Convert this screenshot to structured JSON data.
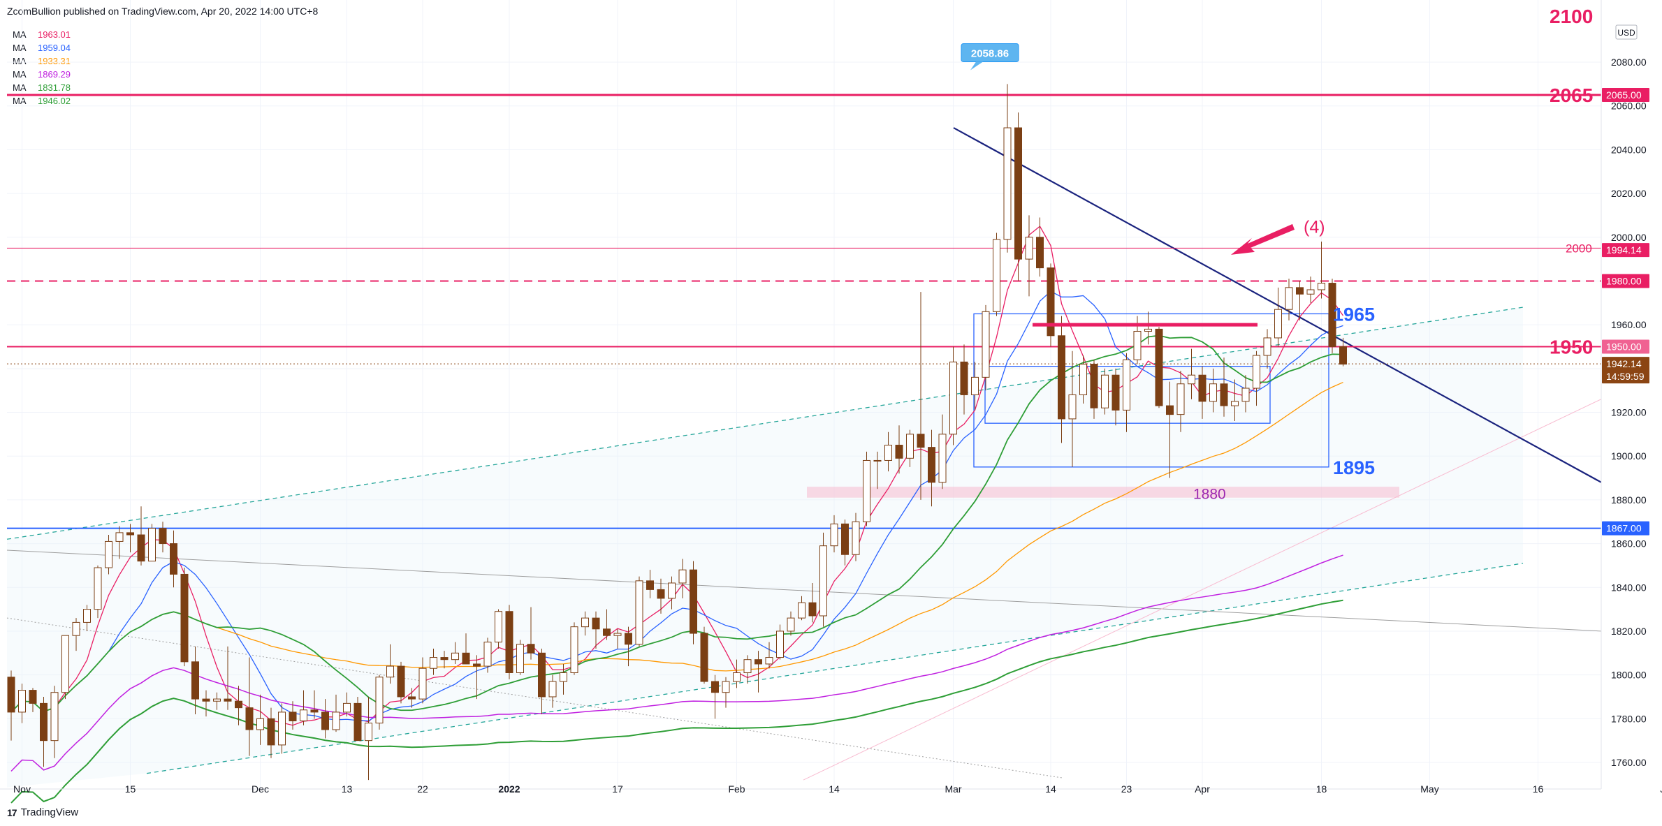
{
  "header": {
    "publisher": "ZcomBullion published on TradingView.com, Apr 20, 2022 14:00 UTC+8"
  },
  "footer": {
    "brand": "TradingView",
    "logo": "17"
  },
  "ma_legend": [
    {
      "label": "MA",
      "value": "1963.01",
      "color": "#e91e63"
    },
    {
      "label": "MA",
      "value": "1959.04",
      "color": "#2962ff"
    },
    {
      "label": "MA",
      "value": "1933.31",
      "color": "#ff9800"
    },
    {
      "label": "MA",
      "value": "1869.29",
      "color": "#c020e0"
    },
    {
      "label": "MA",
      "value": "1831.78",
      "color": "#2e9e36"
    },
    {
      "label": "MA",
      "value": "1946.02",
      "color": "#2e9e36"
    }
  ],
  "chart_data": {
    "type": "candlestick",
    "currency": "USD",
    "ylim": [
      1750,
      2105
    ],
    "y_ticks": [
      "2080.00",
      "2060.00",
      "2040.00",
      "2020.00",
      "2000.00",
      "1980.00",
      "1960.00",
      "1940.00",
      "1920.00",
      "1900.00",
      "1880.00",
      "1860.00",
      "1840.00",
      "1820.00",
      "1800.00",
      "1780.00",
      "1760.00"
    ],
    "x_ticks": [
      {
        "date": "2021-11-01",
        "label": "Nov"
      },
      {
        "date": "2021-11-15",
        "label": "15"
      },
      {
        "date": "2021-12-01",
        "label": "Dec"
      },
      {
        "date": "2021-12-13",
        "label": "13"
      },
      {
        "date": "2021-12-22",
        "label": "22"
      },
      {
        "date": "2022-01-03",
        "label": "2022"
      },
      {
        "date": "2022-01-17",
        "label": "17"
      },
      {
        "date": "2022-02-01",
        "label": "Feb"
      },
      {
        "date": "2022-02-14",
        "label": "14"
      },
      {
        "date": "2022-03-01",
        "label": "Mar"
      },
      {
        "date": "2022-03-14",
        "label": "14"
      },
      {
        "date": "2022-03-23",
        "label": "23"
      },
      {
        "date": "2022-04-01",
        "label": "Apr"
      },
      {
        "date": "2022-04-18",
        "label": "18"
      },
      {
        "date": "2022-05-02",
        "label": "May"
      },
      {
        "date": "2022-05-16",
        "label": "16"
      },
      {
        "date": "2022-06-01",
        "label": "Jun"
      }
    ],
    "price_tags": [
      {
        "value": "2065.00",
        "price": 2065,
        "color": "#e91e63"
      },
      {
        "value": "1994.14",
        "price": 1994.14,
        "color": "#e91e63"
      },
      {
        "value": "1980.00",
        "price": 1980,
        "color": "#e91e63"
      },
      {
        "value": "1950.00",
        "price": 1950,
        "color": "#f06292"
      },
      {
        "value": "1942.14",
        "price": 1942.14,
        "color": "#8b4513",
        "sub": "14:59:59"
      },
      {
        "value": "1867.00",
        "price": 1867,
        "color": "#2962ff"
      }
    ],
    "horizontal_levels": [
      {
        "price": 2065,
        "style": "solid",
        "width": 3,
        "color": "#e91e63"
      },
      {
        "price": 1995,
        "style": "solid",
        "width": 1,
        "color": "#e91e63"
      },
      {
        "price": 1980,
        "style": "dashed",
        "width": 2,
        "color": "#e91e63"
      },
      {
        "price": 1950,
        "style": "solid",
        "width": 2,
        "color": "#e91e63"
      },
      {
        "price": 1942.14,
        "style": "dotted",
        "width": 1,
        "color": "#8b4513"
      },
      {
        "price": 1867,
        "style": "solid",
        "width": 2,
        "color": "#2962ff"
      }
    ],
    "annotations": [
      {
        "text": "2065",
        "color": "#e91e63"
      },
      {
        "text": "2000",
        "color": "#e91e63"
      },
      {
        "text": "1950",
        "color": "#e91e63"
      },
      {
        "text": "1965",
        "color": "#2962ff"
      },
      {
        "text": "1895",
        "color": "#2962ff"
      },
      {
        "text": "1880",
        "color": "#9c27b0"
      },
      {
        "text": "(4)",
        "color": "#e91e63"
      },
      {
        "text": "2058.86",
        "color": "#ffffff"
      }
    ],
    "partial_top_label": "2100",
    "ohlc": [
      [
        "2021-10-29",
        1799,
        1802,
        1770,
        1783
      ],
      [
        "2021-11-01",
        1783,
        1796,
        1778,
        1793
      ],
      [
        "2021-11-02",
        1793,
        1794,
        1783,
        1787
      ],
      [
        "2021-11-03",
        1787,
        1790,
        1758,
        1770
      ],
      [
        "2021-11-04",
        1770,
        1795,
        1762,
        1792
      ],
      [
        "2021-11-05",
        1792,
        1818,
        1789,
        1818
      ],
      [
        "2021-11-08",
        1818,
        1826,
        1811,
        1824
      ],
      [
        "2021-11-09",
        1824,
        1832,
        1820,
        1830
      ],
      [
        "2021-11-10",
        1830,
        1850,
        1826,
        1849
      ],
      [
        "2021-11-11",
        1849,
        1864,
        1846,
        1861
      ],
      [
        "2021-11-12",
        1861,
        1868,
        1853,
        1865
      ],
      [
        "2021-11-15",
        1865,
        1869,
        1856,
        1864
      ],
      [
        "2021-11-16",
        1864,
        1877,
        1850,
        1852
      ],
      [
        "2021-11-17",
        1852,
        1869,
        1852,
        1867
      ],
      [
        "2021-11-18",
        1867,
        1870,
        1856,
        1860
      ],
      [
        "2021-11-19",
        1860,
        1866,
        1840,
        1846
      ],
      [
        "2021-11-22",
        1846,
        1849,
        1804,
        1806
      ],
      [
        "2021-11-23",
        1806,
        1813,
        1782,
        1789
      ],
      [
        "2021-11-24",
        1789,
        1793,
        1781,
        1788
      ],
      [
        "2021-11-25",
        1788,
        1792,
        1784,
        1789
      ],
      [
        "2021-11-26",
        1789,
        1813,
        1784,
        1788
      ],
      [
        "2021-11-29",
        1788,
        1795,
        1777,
        1785
      ],
      [
        "2021-11-30",
        1785,
        1808,
        1763,
        1775
      ],
      [
        "2021-12-01",
        1775,
        1791,
        1768,
        1780
      ],
      [
        "2021-12-02",
        1780,
        1785,
        1762,
        1768
      ],
      [
        "2021-12-03",
        1768,
        1787,
        1764,
        1783
      ],
      [
        "2021-12-06",
        1783,
        1788,
        1775,
        1779
      ],
      [
        "2021-12-07",
        1779,
        1793,
        1777,
        1784
      ],
      [
        "2021-12-08",
        1784,
        1793,
        1780,
        1783
      ],
      [
        "2021-12-09",
        1783,
        1789,
        1771,
        1775
      ],
      [
        "2021-12-10",
        1775,
        1791,
        1774,
        1783
      ],
      [
        "2021-12-13",
        1783,
        1792,
        1781,
        1787
      ],
      [
        "2021-12-14",
        1787,
        1790,
        1770,
        1770
      ],
      [
        "2021-12-15",
        1770,
        1790,
        1752,
        1778
      ],
      [
        "2021-12-16",
        1778,
        1800,
        1775,
        1799
      ],
      [
        "2021-12-17",
        1799,
        1814,
        1796,
        1804
      ],
      [
        "2021-12-20",
        1804,
        1806,
        1787,
        1790
      ],
      [
        "2021-12-21",
        1790,
        1794,
        1785,
        1789
      ],
      [
        "2021-12-22",
        1789,
        1808,
        1787,
        1803
      ],
      [
        "2021-12-23",
        1803,
        1812,
        1800,
        1808
      ],
      [
        "2021-12-24",
        1808,
        1811,
        1803,
        1807
      ],
      [
        "2021-12-27",
        1807,
        1815,
        1805,
        1810
      ],
      [
        "2021-12-28",
        1810,
        1819,
        1805,
        1805
      ],
      [
        "2021-12-29",
        1805,
        1809,
        1789,
        1804
      ],
      [
        "2021-12-30",
        1804,
        1817,
        1801,
        1815
      ],
      [
        "2021-12-31",
        1815,
        1830,
        1812,
        1829
      ],
      [
        "2022-01-03",
        1829,
        1832,
        1798,
        1801
      ],
      [
        "2022-01-04",
        1801,
        1816,
        1800,
        1814
      ],
      [
        "2022-01-05",
        1814,
        1831,
        1807,
        1810
      ],
      [
        "2022-01-06",
        1810,
        1812,
        1782,
        1790
      ],
      [
        "2022-01-07",
        1790,
        1800,
        1785,
        1797
      ],
      [
        "2022-01-10",
        1797,
        1805,
        1791,
        1801
      ],
      [
        "2022-01-11",
        1801,
        1824,
        1800,
        1822
      ],
      [
        "2022-01-12",
        1822,
        1829,
        1818,
        1826
      ],
      [
        "2022-01-13",
        1826,
        1829,
        1812,
        1821
      ],
      [
        "2022-01-14",
        1821,
        1830,
        1816,
        1818
      ],
      [
        "2022-01-17",
        1818,
        1821,
        1812,
        1819
      ],
      [
        "2022-01-18",
        1819,
        1822,
        1804,
        1814
      ],
      [
        "2022-01-19",
        1814,
        1845,
        1813,
        1843
      ],
      [
        "2022-01-20",
        1843,
        1848,
        1835,
        1839
      ],
      [
        "2022-01-21",
        1839,
        1844,
        1828,
        1835
      ],
      [
        "2022-01-24",
        1835,
        1845,
        1830,
        1842
      ],
      [
        "2022-01-25",
        1842,
        1853,
        1835,
        1848
      ],
      [
        "2022-01-26",
        1848,
        1852,
        1814,
        1819
      ],
      [
        "2022-01-27",
        1819,
        1822,
        1796,
        1797
      ],
      [
        "2022-01-28",
        1797,
        1800,
        1780,
        1792
      ],
      [
        "2022-01-31",
        1792,
        1799,
        1785,
        1797
      ],
      [
        "2022-02-01",
        1797,
        1807,
        1794,
        1801
      ],
      [
        "2022-02-02",
        1801,
        1809,
        1796,
        1807
      ],
      [
        "2022-02-03",
        1807,
        1811,
        1792,
        1805
      ],
      [
        "2022-02-04",
        1805,
        1815,
        1803,
        1808
      ],
      [
        "2022-02-07",
        1808,
        1823,
        1807,
        1820
      ],
      [
        "2022-02-08",
        1820,
        1829,
        1818,
        1826
      ],
      [
        "2022-02-09",
        1826,
        1836,
        1825,
        1833
      ],
      [
        "2022-02-10",
        1833,
        1842,
        1824,
        1827
      ],
      [
        "2022-02-11",
        1827,
        1865,
        1822,
        1859
      ],
      [
        "2022-02-14",
        1859,
        1873,
        1856,
        1869
      ],
      [
        "2022-02-15",
        1869,
        1871,
        1850,
        1855
      ],
      [
        "2022-02-16",
        1855,
        1874,
        1852,
        1870
      ],
      [
        "2022-02-17",
        1870,
        1902,
        1868,
        1898
      ],
      [
        "2022-02-18",
        1898,
        1902,
        1885,
        1898
      ],
      [
        "2022-02-21",
        1898,
        1911,
        1893,
        1905
      ],
      [
        "2022-02-22",
        1905,
        1914,
        1892,
        1899
      ],
      [
        "2022-02-23",
        1899,
        1912,
        1895,
        1910
      ],
      [
        "2022-02-24",
        1910,
        1975,
        1880,
        1904
      ],
      [
        "2022-02-25",
        1904,
        1912,
        1877,
        1888
      ],
      [
        "2022-02-28",
        1888,
        1919,
        1885,
        1910
      ],
      [
        "2022-03-01",
        1910,
        1950,
        1905,
        1943
      ],
      [
        "2022-03-02",
        1943,
        1951,
        1919,
        1928
      ],
      [
        "2022-03-03",
        1928,
        1943,
        1921,
        1936
      ],
      [
        "2022-03-04",
        1936,
        1969,
        1930,
        1966
      ],
      [
        "2022-03-07",
        1966,
        2002,
        1964,
        1999
      ],
      [
        "2022-03-08",
        1999,
        2070,
        1993,
        2050
      ],
      [
        "2022-03-09",
        2050,
        2057,
        1980,
        1990
      ],
      [
        "2022-03-10",
        1990,
        2010,
        1973,
        2000
      ],
      [
        "2022-03-11",
        2000,
        2009,
        1982,
        1986
      ],
      [
        "2022-03-14",
        1986,
        1988,
        1950,
        1955
      ],
      [
        "2022-03-15",
        1955,
        1964,
        1906,
        1917
      ],
      [
        "2022-03-16",
        1917,
        1948,
        1895,
        1928
      ],
      [
        "2022-03-17",
        1928,
        1946,
        1924,
        1942
      ],
      [
        "2022-03-18",
        1942,
        1944,
        1917,
        1922
      ],
      [
        "2022-03-21",
        1922,
        1940,
        1919,
        1937
      ],
      [
        "2022-03-22",
        1937,
        1940,
        1914,
        1921
      ],
      [
        "2022-03-23",
        1921,
        1947,
        1911,
        1944
      ],
      [
        "2022-03-24",
        1944,
        1964,
        1942,
        1957
      ],
      [
        "2022-03-25",
        1957,
        1966,
        1951,
        1958
      ],
      [
        "2022-03-28",
        1958,
        1959,
        1922,
        1923
      ],
      [
        "2022-03-29",
        1923,
        1934,
        1890,
        1919
      ],
      [
        "2022-03-30",
        1919,
        1939,
        1911,
        1933
      ],
      [
        "2022-03-31",
        1933,
        1949,
        1926,
        1937
      ],
      [
        "2022-04-01",
        1937,
        1941,
        1917,
        1925
      ],
      [
        "2022-04-04",
        1925,
        1940,
        1920,
        1933
      ],
      [
        "2022-04-05",
        1933,
        1945,
        1918,
        1923
      ],
      [
        "2022-04-06",
        1923,
        1935,
        1916,
        1925
      ],
      [
        "2022-04-07",
        1925,
        1937,
        1920,
        1931
      ],
      [
        "2022-04-08",
        1931,
        1948,
        1923,
        1946
      ],
      [
        "2022-04-11",
        1946,
        1958,
        1940,
        1954
      ],
      [
        "2022-04-12",
        1954,
        1977,
        1950,
        1967
      ],
      [
        "2022-04-13",
        1967,
        1981,
        1962,
        1977
      ],
      [
        "2022-04-14",
        1977,
        1980,
        1962,
        1974
      ],
      [
        "2022-04-15",
        1974,
        1982,
        1970,
        1976
      ],
      [
        "2022-04-18",
        1976,
        1998,
        1972,
        1979
      ],
      [
        "2022-04-19",
        1979,
        1981,
        1947,
        1950
      ],
      [
        "2022-04-20",
        1950,
        1954,
        1941,
        1942
      ]
    ]
  }
}
